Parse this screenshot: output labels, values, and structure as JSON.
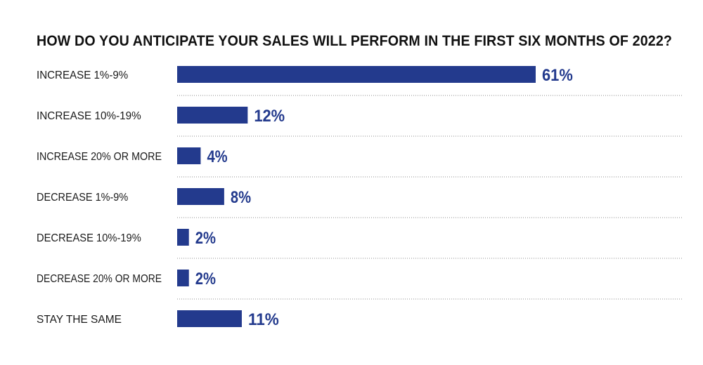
{
  "chart_data": {
    "type": "bar",
    "orientation": "horizontal",
    "title": "HOW DO YOU ANTICIPATE YOUR SALES WILL PERFORM IN THE FIRST SIX MONTHS OF 2022?",
    "categories": [
      "INCREASE 1%-9%",
      "INCREASE 10%-19%",
      "INCREASE 20% OR MORE",
      "DECREASE 1%-9%",
      "DECREASE 10%-19%",
      "DECREASE 20% OR MORE",
      "STAY THE SAME"
    ],
    "values": [
      61,
      12,
      4,
      8,
      2,
      2,
      11
    ],
    "value_labels": [
      "61%",
      "12%",
      "4%",
      "8%",
      "2%",
      "2%",
      "11%"
    ],
    "unit": "%",
    "xlabel": "",
    "ylabel": "",
    "xlim": [
      0,
      61
    ],
    "grid": false,
    "row_separators": "dotted",
    "legend": "none",
    "colors": {
      "bar": "#233a8d",
      "value_label": "#233a8d",
      "category_label": "#1a1a1a",
      "title": "#111111",
      "separator": "#8c8c8c"
    }
  }
}
